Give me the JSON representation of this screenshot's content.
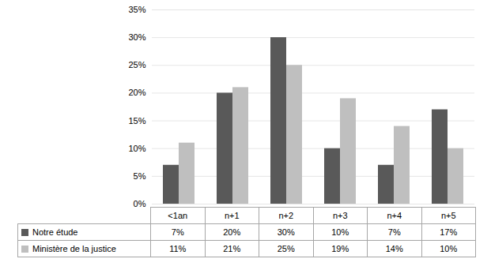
{
  "chart_data": {
    "type": "bar",
    "categories": [
      "<1an",
      "n+1",
      "n+2",
      "n+3",
      "n+4",
      "n+5"
    ],
    "series": [
      {
        "name": "Notre étude",
        "color": "#595959",
        "values": [
          7,
          20,
          30,
          10,
          7,
          17
        ],
        "value_labels": [
          "7%",
          "20%",
          "30%",
          "10%",
          "7%",
          "17%"
        ]
      },
      {
        "name": "Ministère de la justice",
        "color": "#bfbfbf",
        "values": [
          11,
          21,
          25,
          19,
          14,
          10
        ],
        "value_labels": [
          "11%",
          "21%",
          "25%",
          "19%",
          "14%",
          "10%"
        ]
      }
    ],
    "ylim": [
      0,
      35
    ],
    "yticks": [
      {
        "value": 0,
        "label": "0%"
      },
      {
        "value": 5,
        "label": "5%"
      },
      {
        "value": 10,
        "label": "10%"
      },
      {
        "value": 15,
        "label": "15%"
      },
      {
        "value": 20,
        "label": "20%"
      },
      {
        "value": 25,
        "label": "25%"
      },
      {
        "value": 30,
        "label": "30%"
      },
      {
        "value": 35,
        "label": "35%"
      }
    ],
    "grid": true
  }
}
